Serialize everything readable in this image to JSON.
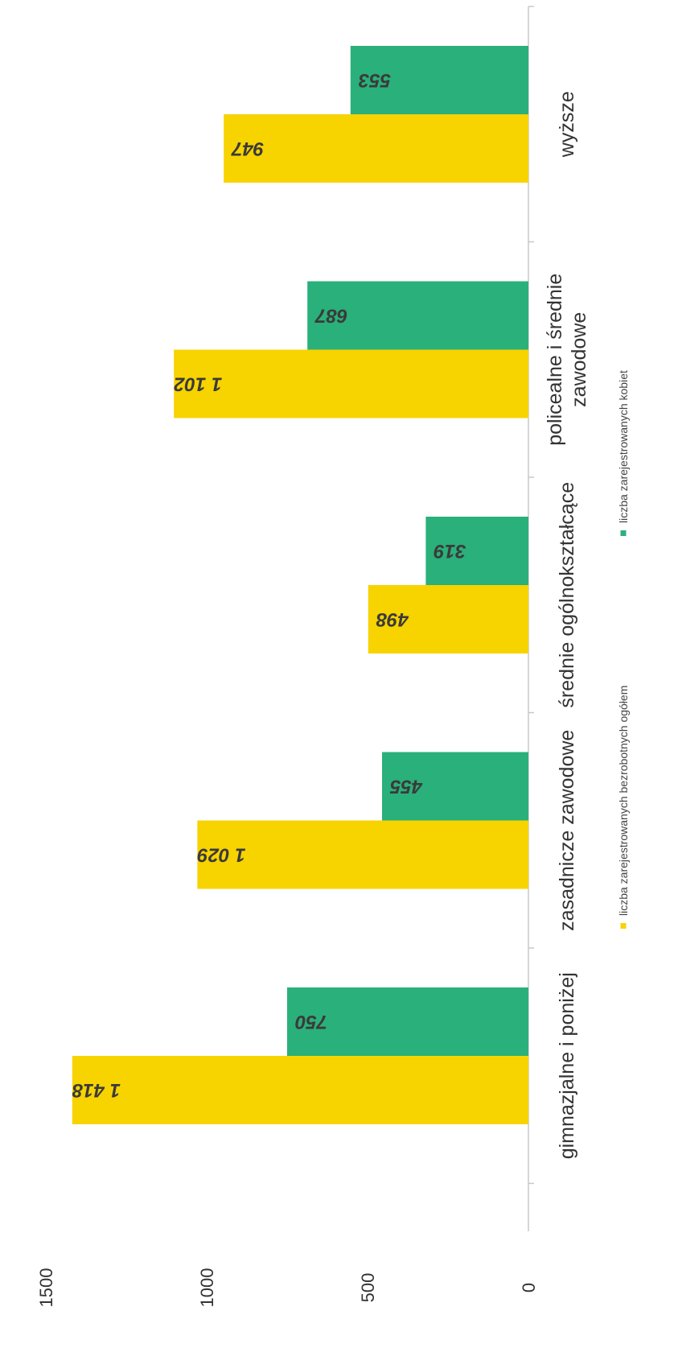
{
  "chart_data": {
    "type": "bar",
    "orientation": "rotated-90",
    "categories": [
      "wyższe",
      "policealne i średnie zawodowe",
      "średnie ogólnokształcące",
      "zasadnicze zawodowe",
      "gimnazjalne i poniżej"
    ],
    "category_lines": [
      [
        "wyższe"
      ],
      [
        "policealne i średnie",
        "zawodowe"
      ],
      [
        "średnie ogólnokształcące"
      ],
      [
        "zasadnicze zawodowe"
      ],
      [
        "gimnazjalne i poniżej"
      ]
    ],
    "series": [
      {
        "name": "liczba zarejestrowanych bezrobotnych ogółem",
        "color": "#f7d300",
        "values": [
          947,
          1102,
          498,
          1029,
          1418
        ],
        "labels": [
          "947",
          "1 102",
          "498",
          "1 029",
          "1 418"
        ]
      },
      {
        "name": "liczba zarejestrowanych kobiet",
        "color": "#2ab07a",
        "values": [
          553,
          687,
          319,
          455,
          750
        ],
        "labels": [
          "553",
          "687",
          "319",
          "455",
          "750"
        ]
      }
    ],
    "value_axis": {
      "range": [
        0,
        1500
      ],
      "ticks": [
        0,
        500,
        1000,
        1500
      ],
      "tick_labels": [
        "0",
        "500",
        "1000",
        "1500"
      ]
    },
    "grid": false,
    "legend_position": "right"
  }
}
